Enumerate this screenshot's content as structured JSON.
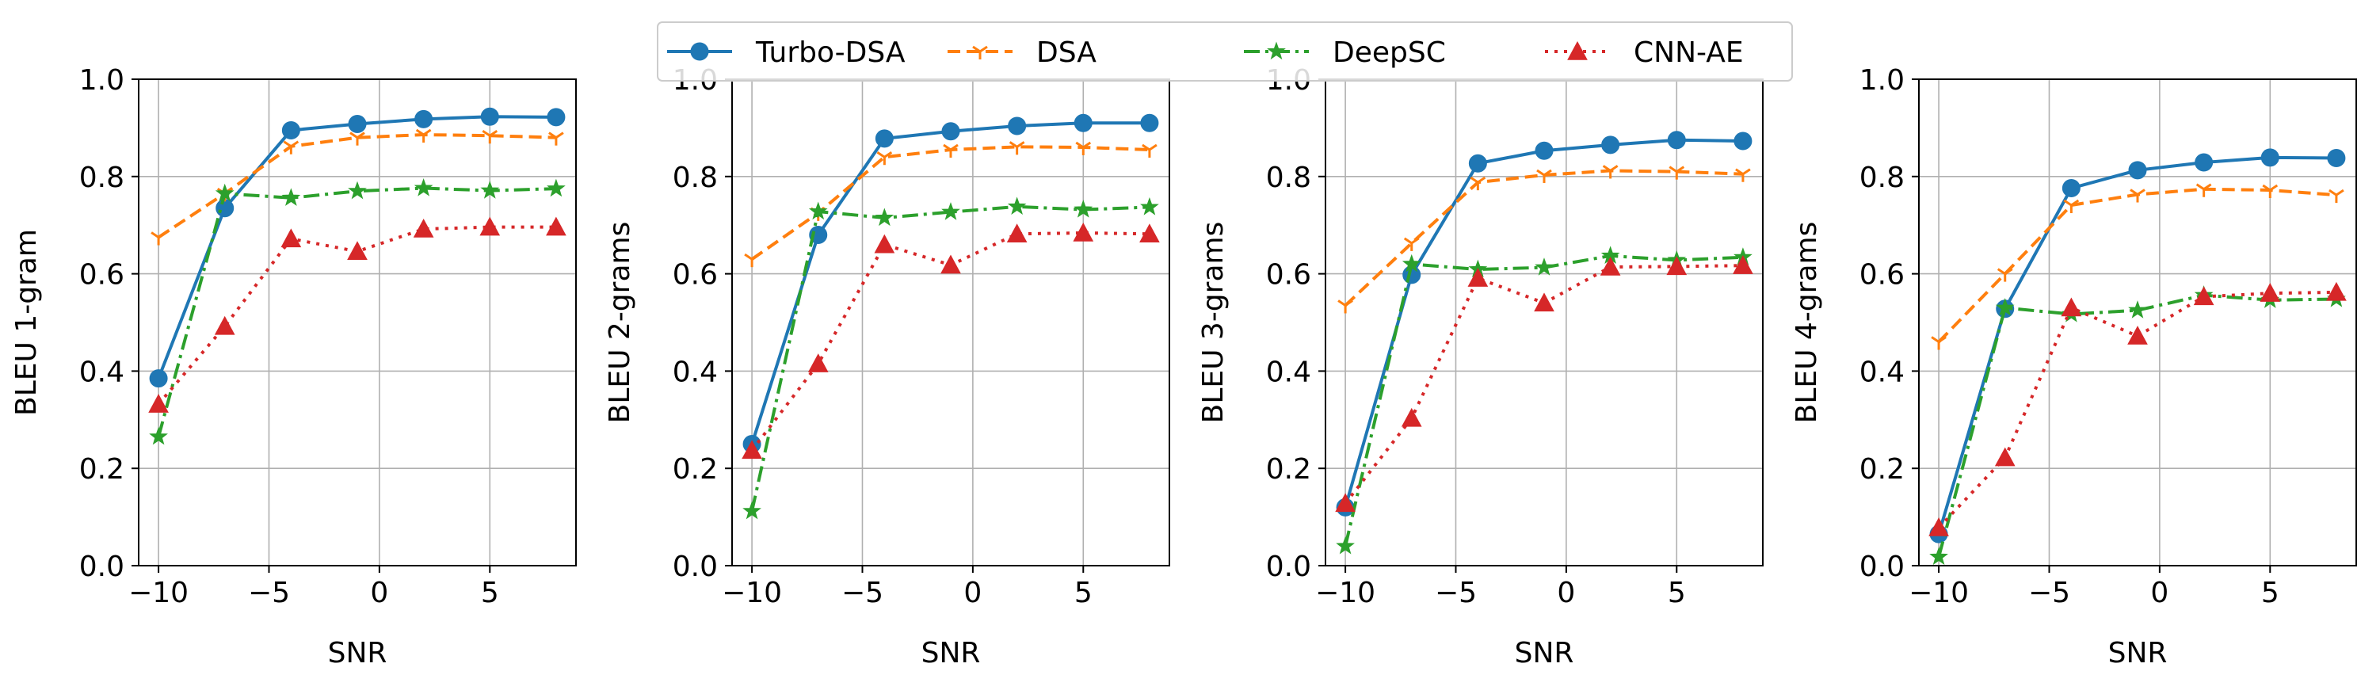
{
  "chart_data": {
    "type": "line",
    "x": [
      -10,
      -7,
      -4,
      -1,
      2,
      5,
      8
    ],
    "xlabel": "SNR",
    "xlim": [
      -10.9,
      8.9
    ],
    "ylim": [
      0,
      1
    ],
    "xticks": [
      -10,
      -5,
      0,
      5
    ],
    "xtick_labels": [
      "−10",
      "−5",
      "0",
      "5"
    ],
    "yticks": [
      0,
      0.2,
      0.4,
      0.6,
      0.8,
      1.0
    ],
    "ytick_labels": [
      "0.0",
      "0.2",
      "0.4",
      "0.6",
      "0.8",
      "1.0"
    ],
    "grid": true,
    "legend": {
      "placement": "top-center",
      "entries": [
        {
          "name": "Turbo-DSA",
          "color": "#1f77b4",
          "dash": "solid",
          "marker": "circle"
        },
        {
          "name": "DSA",
          "color": "#ff7f0e",
          "dash": "dashed",
          "marker": "tri-down"
        },
        {
          "name": "DeepSC",
          "color": "#2ca02c",
          "dash": "dashdot",
          "marker": "star"
        },
        {
          "name": "CNN-AE",
          "color": "#d62728",
          "dash": "dotted",
          "marker": "triangle"
        }
      ]
    },
    "panels": [
      {
        "ylabel": "BLEU 1-gram",
        "series": [
          {
            "name": "Turbo-DSA",
            "values": [
              0.385,
              0.735,
              0.895,
              0.908,
              0.918,
              0.923,
              0.922
            ]
          },
          {
            "name": "DSA",
            "values": [
              0.675,
              0.765,
              0.862,
              0.88,
              0.886,
              0.884,
              0.88
            ]
          },
          {
            "name": "DeepSC",
            "values": [
              0.265,
              0.765,
              0.756,
              0.77,
              0.776,
              0.771,
              0.775
            ]
          },
          {
            "name": "CNN-AE",
            "values": [
              0.332,
              0.492,
              0.672,
              0.646,
              0.692,
              0.696,
              0.696
            ]
          }
        ]
      },
      {
        "ylabel": "BLEU 2-grams",
        "series": [
          {
            "name": "Turbo-DSA",
            "values": [
              0.25,
              0.68,
              0.878,
              0.893,
              0.904,
              0.91,
              0.91
            ]
          },
          {
            "name": "DSA",
            "values": [
              0.63,
              0.725,
              0.84,
              0.855,
              0.861,
              0.86,
              0.855
            ]
          },
          {
            "name": "DeepSC",
            "values": [
              0.112,
              0.728,
              0.715,
              0.727,
              0.738,
              0.732,
              0.737
            ]
          },
          {
            "name": "CNN-AE",
            "values": [
              0.237,
              0.415,
              0.66,
              0.618,
              0.682,
              0.684,
              0.682
            ]
          }
        ]
      },
      {
        "ylabel": "BLEU 3-grams",
        "series": [
          {
            "name": "Turbo-DSA",
            "values": [
              0.12,
              0.598,
              0.827,
              0.853,
              0.865,
              0.875,
              0.873
            ]
          },
          {
            "name": "DSA",
            "values": [
              0.535,
              0.663,
              0.788,
              0.803,
              0.812,
              0.81,
              0.805
            ]
          },
          {
            "name": "DeepSC",
            "values": [
              0.04,
              0.62,
              0.609,
              0.613,
              0.637,
              0.628,
              0.634
            ]
          },
          {
            "name": "CNN-AE",
            "values": [
              0.128,
              0.303,
              0.591,
              0.54,
              0.614,
              0.615,
              0.617
            ]
          }
        ]
      },
      {
        "ylabel": "BLEU 4-grams",
        "series": [
          {
            "name": "Turbo-DSA",
            "values": [
              0.065,
              0.528,
              0.776,
              0.813,
              0.829,
              0.839,
              0.838
            ]
          },
          {
            "name": "DSA",
            "values": [
              0.46,
              0.6,
              0.741,
              0.763,
              0.774,
              0.772,
              0.762
            ]
          },
          {
            "name": "DeepSC",
            "values": [
              0.018,
              0.53,
              0.517,
              0.525,
              0.556,
              0.546,
              0.548
            ]
          },
          {
            "name": "CNN-AE",
            "values": [
              0.078,
              0.222,
              0.53,
              0.472,
              0.553,
              0.56,
              0.562
            ]
          }
        ]
      }
    ]
  }
}
